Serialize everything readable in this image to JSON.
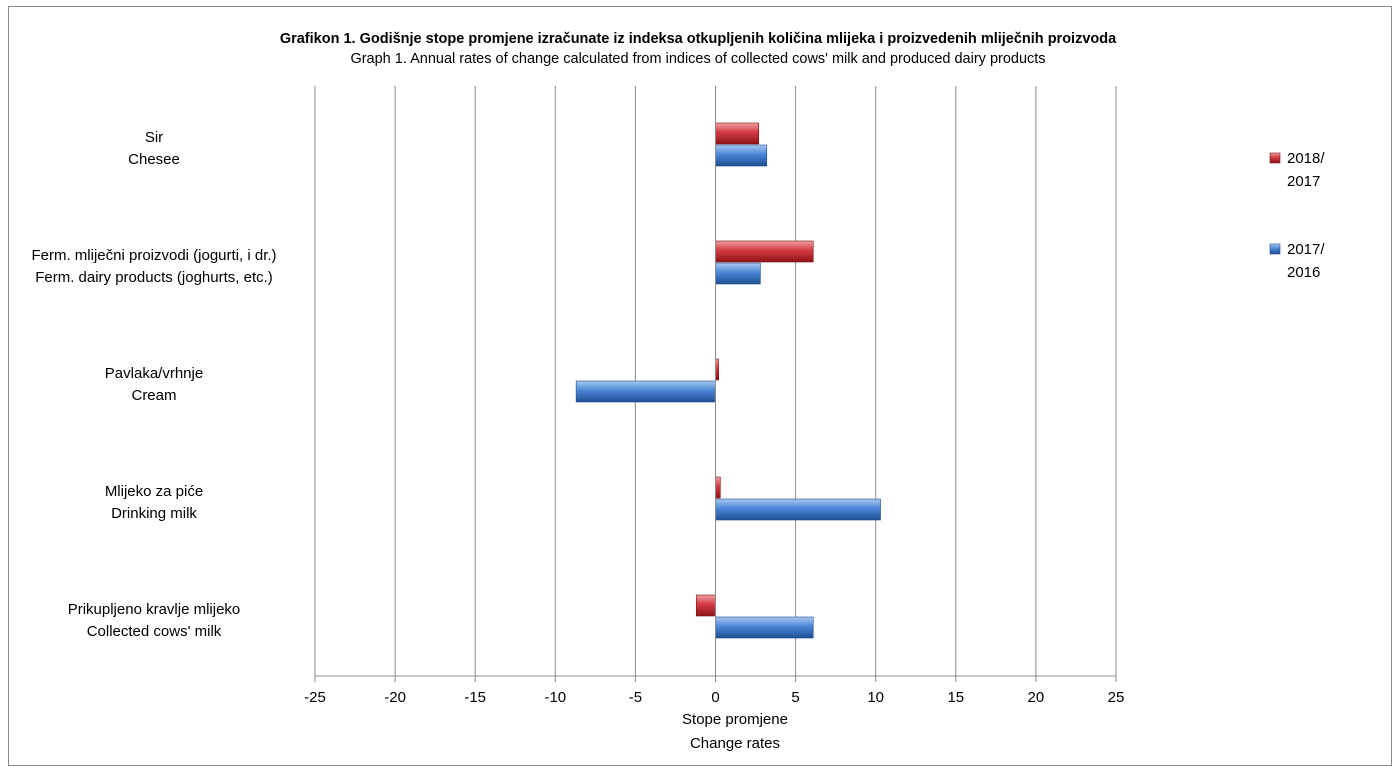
{
  "chart_data": {
    "type": "bar",
    "orientation": "horizontal",
    "title": "Grafikon 1. Godišnje stope  promjene izračunate iz indeksa otkupljenih količina mlijeka i proizvedenih mliječnih proizvoda",
    "subtitle": "Graph 1. Annual rates of change calculated from indices of collected cows' milk and produced dairy products",
    "xlabel": [
      "Stope promjene",
      "Change rates"
    ],
    "ylabel": "",
    "xlim": [
      -25,
      25
    ],
    "xticks": [
      -25,
      -20,
      -15,
      -10,
      -5,
      0,
      5,
      10,
      15,
      20,
      25
    ],
    "grid": true,
    "legend_position": "right",
    "categories": [
      [
        "Sir",
        "Chesee"
      ],
      [
        "Ferm. mliječni proizvodi (jogurti, i dr.)",
        "Ferm. dairy products (joghurts, etc.)"
      ],
      [
        "Pavlaka/vrhnje",
        "Cream"
      ],
      [
        "Mlijeko za piće",
        "Drinking milk"
      ],
      [
        "Prikupljeno kravlje mlijeko",
        "Collected cows' milk"
      ]
    ],
    "series": [
      {
        "name": [
          "2018/",
          "2017"
        ],
        "color": "#c0272d",
        "values": [
          2.7,
          6.1,
          0.2,
          0.3,
          -1.2
        ]
      },
      {
        "name": [
          "2017/",
          "2016"
        ],
        "color": "#3b78c8",
        "values": [
          3.2,
          2.8,
          -8.7,
          10.3,
          6.1
        ]
      }
    ]
  }
}
